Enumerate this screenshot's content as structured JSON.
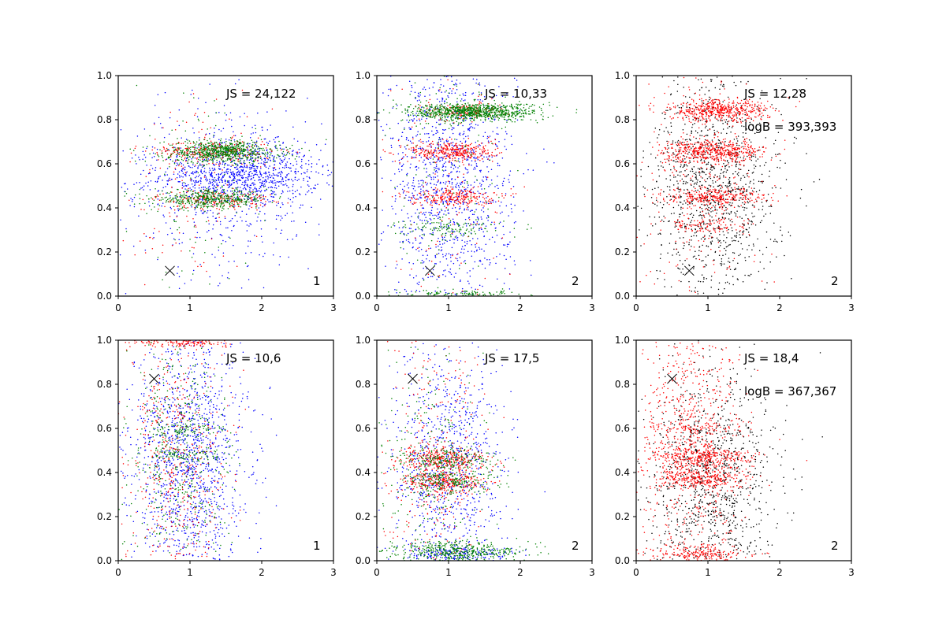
{
  "chart_data": [
    {
      "type": "scatter",
      "title": "",
      "xlabel": "",
      "ylabel": "",
      "xlim": [
        0,
        3
      ],
      "ylim": [
        0,
        1
      ],
      "xticks": [
        "0",
        "1",
        "2",
        "3"
      ],
      "yticks": [
        "0.0",
        "0.2",
        "0.4",
        "0.6",
        "0.8",
        "1.0"
      ],
      "annotations": [
        "JS = 24,122"
      ],
      "index_label": "1",
      "marker": {
        "x": 0.72,
        "y": 0.115,
        "symbol": "x"
      },
      "series": [
        {
          "name": "blue",
          "color": "#0000ff",
          "clusters": [
            {
              "x": 1.7,
              "y": 0.55,
              "sx": 0.55,
              "sy": 0.07,
              "n": 900
            },
            {
              "x": 1.5,
              "y": 0.5,
              "sx": 0.8,
              "sy": 0.2,
              "n": 500
            }
          ]
        },
        {
          "name": "red",
          "color": "#ff0000",
          "clusters": [
            {
              "x": 1.35,
              "y": 0.655,
              "sx": 0.4,
              "sy": 0.025,
              "n": 250
            },
            {
              "x": 1.35,
              "y": 0.44,
              "sx": 0.4,
              "sy": 0.02,
              "n": 200
            },
            {
              "x": 1.0,
              "y": 0.5,
              "sx": 0.4,
              "sy": 0.3,
              "n": 150
            }
          ]
        },
        {
          "name": "green",
          "color": "#008000",
          "clusters": [
            {
              "x": 1.45,
              "y": 0.655,
              "sx": 0.4,
              "sy": 0.025,
              "n": 700
            },
            {
              "x": 1.3,
              "y": 0.44,
              "sx": 0.4,
              "sy": 0.02,
              "n": 450
            },
            {
              "x": 1.0,
              "y": 0.5,
              "sx": 0.4,
              "sy": 0.3,
              "n": 100
            }
          ]
        }
      ]
    },
    {
      "type": "scatter",
      "title": "",
      "xlabel": "",
      "ylabel": "",
      "xlim": [
        0,
        3
      ],
      "ylim": [
        0,
        1
      ],
      "xticks": [
        "0",
        "1",
        "2",
        "3"
      ],
      "yticks": [
        "0.0",
        "0.2",
        "0.4",
        "0.6",
        "0.8",
        "1.0"
      ],
      "annotations": [
        "JS = 10,33"
      ],
      "index_label": "2",
      "marker": {
        "x": 0.74,
        "y": 0.115,
        "symbol": "x"
      },
      "series": [
        {
          "name": "blue",
          "color": "#0000ff",
          "clusters": [
            {
              "x": 1.0,
              "y": 0.5,
              "sx": 0.45,
              "sy": 0.3,
              "n": 1300
            }
          ]
        },
        {
          "name": "red",
          "color": "#ff0000",
          "clusters": [
            {
              "x": 1.2,
              "y": 0.84,
              "sx": 0.3,
              "sy": 0.02,
              "n": 150
            },
            {
              "x": 1.05,
              "y": 0.655,
              "sx": 0.3,
              "sy": 0.025,
              "n": 350
            },
            {
              "x": 1.05,
              "y": 0.45,
              "sx": 0.3,
              "sy": 0.02,
              "n": 250
            },
            {
              "x": 1.0,
              "y": 0.5,
              "sx": 0.4,
              "sy": 0.3,
              "n": 100
            }
          ]
        },
        {
          "name": "green",
          "color": "#008000",
          "clusters": [
            {
              "x": 1.35,
              "y": 0.835,
              "sx": 0.45,
              "sy": 0.02,
              "n": 900
            },
            {
              "x": 1.0,
              "y": 0.31,
              "sx": 0.35,
              "sy": 0.02,
              "n": 120
            },
            {
              "x": 1.2,
              "y": 0.01,
              "sx": 0.45,
              "sy": 0.008,
              "n": 120
            },
            {
              "x": 1.0,
              "y": 0.5,
              "sx": 0.4,
              "sy": 0.3,
              "n": 150
            }
          ]
        }
      ]
    },
    {
      "type": "scatter",
      "title": "",
      "xlabel": "",
      "ylabel": "",
      "xlim": [
        0,
        3
      ],
      "ylim": [
        0,
        1
      ],
      "xticks": [
        "0",
        "1",
        "2",
        "3"
      ],
      "yticks": [
        "0.0",
        "0.2",
        "0.4",
        "0.6",
        "0.8",
        "1.0"
      ],
      "annotations": [
        "JS = 12,28",
        "logB = 393,393"
      ],
      "index_label": "2",
      "marker": {
        "x": 0.74,
        "y": 0.115,
        "symbol": "x"
      },
      "series": [
        {
          "name": "black",
          "color": "#000000",
          "clusters": [
            {
              "x": 1.1,
              "y": 0.5,
              "sx": 0.45,
              "sy": 0.25,
              "n": 1200
            }
          ]
        },
        {
          "name": "red",
          "color": "#ff0000",
          "clusters": [
            {
              "x": 1.15,
              "y": 0.84,
              "sx": 0.35,
              "sy": 0.025,
              "n": 500
            },
            {
              "x": 1.1,
              "y": 0.655,
              "sx": 0.35,
              "sy": 0.025,
              "n": 500
            },
            {
              "x": 1.1,
              "y": 0.45,
              "sx": 0.35,
              "sy": 0.02,
              "n": 300
            },
            {
              "x": 1.0,
              "y": 0.32,
              "sx": 0.3,
              "sy": 0.02,
              "n": 100
            },
            {
              "x": 0.9,
              "y": 0.5,
              "sx": 0.4,
              "sy": 0.3,
              "n": 250
            }
          ]
        }
      ]
    },
    {
      "type": "scatter",
      "title": "",
      "xlabel": "",
      "ylabel": "",
      "xlim": [
        0,
        3
      ],
      "ylim": [
        0,
        1
      ],
      "xticks": [
        "0",
        "1",
        "2",
        "3"
      ],
      "yticks": [
        "0.0",
        "0.2",
        "0.4",
        "0.6",
        "0.8",
        "1.0"
      ],
      "annotations": [
        "JS = 10,6"
      ],
      "index_label": "1",
      "marker": {
        "x": 0.5,
        "y": 0.825,
        "symbol": "x"
      },
      "series": [
        {
          "name": "blue",
          "color": "#0000ff",
          "clusters": [
            {
              "x": 1.0,
              "y": 0.45,
              "sx": 0.4,
              "sy": 0.3,
              "n": 1400
            }
          ]
        },
        {
          "name": "red",
          "color": "#ff0000",
          "clusters": [
            {
              "x": 0.8,
              "y": 0.45,
              "sx": 0.35,
              "sy": 0.3,
              "n": 500
            },
            {
              "x": 0.9,
              "y": 0.99,
              "sx": 0.35,
              "sy": 0.01,
              "n": 150
            }
          ]
        },
        {
          "name": "green",
          "color": "#008000",
          "clusters": [
            {
              "x": 0.85,
              "y": 0.45,
              "sx": 0.35,
              "sy": 0.3,
              "n": 450
            },
            {
              "x": 0.9,
              "y": 0.59,
              "sx": 0.3,
              "sy": 0.02,
              "n": 80
            },
            {
              "x": 0.9,
              "y": 0.48,
              "sx": 0.3,
              "sy": 0.02,
              "n": 80
            }
          ]
        }
      ]
    },
    {
      "type": "scatter",
      "title": "",
      "xlabel": "",
      "ylabel": "",
      "xlim": [
        0,
        3
      ],
      "ylim": [
        0,
        1
      ],
      "xticks": [
        "0",
        "1",
        "2",
        "3"
      ],
      "yticks": [
        "0.0",
        "0.2",
        "0.4",
        "0.6",
        "0.8",
        "1.0"
      ],
      "annotations": [
        "JS = 17,5"
      ],
      "index_label": "2",
      "marker": {
        "x": 0.5,
        "y": 0.825,
        "symbol": "x"
      },
      "series": [
        {
          "name": "blue",
          "color": "#0000ff",
          "clusters": [
            {
              "x": 1.0,
              "y": 0.4,
              "sx": 0.4,
              "sy": 0.28,
              "n": 900
            },
            {
              "x": 1.1,
              "y": 0.03,
              "sx": 0.45,
              "sy": 0.02,
              "n": 200
            }
          ]
        },
        {
          "name": "red",
          "color": "#ff0000",
          "clusters": [
            {
              "x": 0.95,
              "y": 0.46,
              "sx": 0.3,
              "sy": 0.025,
              "n": 300
            },
            {
              "x": 0.95,
              "y": 0.36,
              "sx": 0.3,
              "sy": 0.025,
              "n": 300
            },
            {
              "x": 0.8,
              "y": 0.45,
              "sx": 0.35,
              "sy": 0.3,
              "n": 300
            }
          ]
        },
        {
          "name": "green",
          "color": "#008000",
          "clusters": [
            {
              "x": 1.1,
              "y": 0.04,
              "sx": 0.45,
              "sy": 0.025,
              "n": 450
            },
            {
              "x": 1.0,
              "y": 0.46,
              "sx": 0.35,
              "sy": 0.025,
              "n": 200
            },
            {
              "x": 1.0,
              "y": 0.36,
              "sx": 0.35,
              "sy": 0.025,
              "n": 200
            },
            {
              "x": 0.8,
              "y": 0.45,
              "sx": 0.35,
              "sy": 0.3,
              "n": 250
            }
          ]
        }
      ]
    },
    {
      "type": "scatter",
      "title": "",
      "xlabel": "",
      "ylabel": "",
      "xlim": [
        0,
        3
      ],
      "ylim": [
        0,
        1
      ],
      "xticks": [
        "0",
        "1",
        "2",
        "3"
      ],
      "yticks": [
        "0.0",
        "0.2",
        "0.4",
        "0.6",
        "0.8",
        "1.0"
      ],
      "annotations": [
        "JS = 18,4",
        "logB = 367,367"
      ],
      "index_label": "2",
      "marker": {
        "x": 0.5,
        "y": 0.825,
        "symbol": "x"
      },
      "series": [
        {
          "name": "black",
          "color": "#000000",
          "clusters": [
            {
              "x": 1.05,
              "y": 0.35,
              "sx": 0.45,
              "sy": 0.25,
              "n": 1100
            }
          ]
        },
        {
          "name": "red",
          "color": "#ff0000",
          "clusters": [
            {
              "x": 0.9,
              "y": 0.47,
              "sx": 0.35,
              "sy": 0.025,
              "n": 300
            },
            {
              "x": 0.9,
              "y": 0.38,
              "sx": 0.35,
              "sy": 0.025,
              "n": 300
            },
            {
              "x": 0.9,
              "y": 0.6,
              "sx": 0.3,
              "sy": 0.015,
              "n": 80
            },
            {
              "x": 0.85,
              "y": 0.03,
              "sx": 0.35,
              "sy": 0.02,
              "n": 200
            },
            {
              "x": 0.75,
              "y": 0.5,
              "sx": 0.35,
              "sy": 0.3,
              "n": 750
            }
          ]
        }
      ]
    }
  ]
}
